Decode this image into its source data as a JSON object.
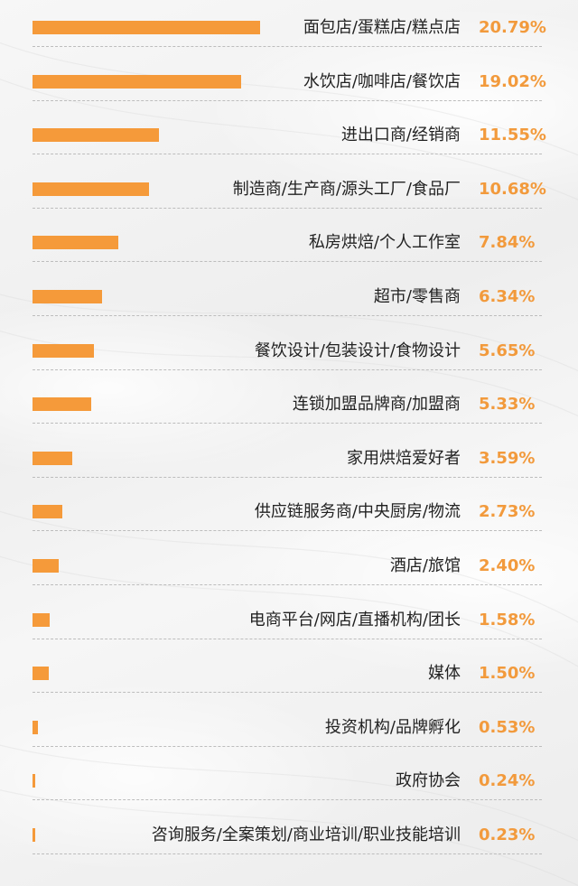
{
  "chart_data": {
    "type": "bar",
    "orientation": "horizontal",
    "categories": [
      "面包店/蛋糕店/糕点店",
      "水饮店/咖啡店/餐饮店",
      "进出口商/经销商",
      "制造商/生产商/源头工厂/食品厂",
      "私房烘焙/个人工作室",
      "超市/零售商",
      "餐饮设计/包装设计/食物设计",
      "连锁加盟品牌商/加盟商",
      "家用烘焙爱好者",
      "供应链服务商/中央厨房/物流",
      "酒店/旅馆",
      "电商平台/网店/直播机构/团长",
      "媒体",
      "投资机构/品牌孵化",
      "政府协会",
      "咨询服务/全案策划/商业培训/职业技能培训"
    ],
    "values": [
      20.79,
      19.02,
      11.55,
      10.68,
      7.84,
      6.34,
      5.65,
      5.33,
      3.59,
      2.73,
      2.4,
      1.58,
      1.5,
      0.53,
      0.24,
      0.23
    ],
    "value_labels": [
      "20.79%",
      "19.02%",
      "11.55%",
      "10.68%",
      "7.84%",
      "6.34%",
      "5.65%",
      "5.33%",
      "3.59%",
      "2.73%",
      "2.40%",
      "1.58%",
      "1.50%",
      "0.53%",
      "0.24%",
      "0.23%"
    ],
    "title": "",
    "xlabel": "",
    "ylabel": "",
    "grid": false,
    "bar_color": "#f59a3a",
    "value_color": "#f29a3c",
    "label_color": "#222222",
    "separator_color": "#bdbdbd"
  }
}
